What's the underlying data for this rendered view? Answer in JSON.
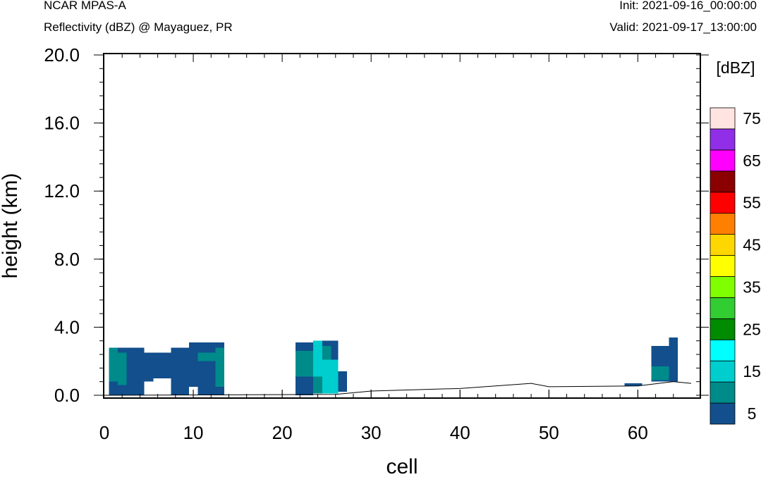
{
  "header": {
    "model": "NCAR MPAS-A",
    "field": "Reflectivity (dBZ) @ Mayaguez, PR",
    "init": "Init: 2021-09-16_00:00:00",
    "valid": "Valid: 2021-09-17_13:00:00"
  },
  "chart_data": {
    "type": "heatmap",
    "xlabel": "cell",
    "ylabel": "height (km)",
    "xlim": [
      0,
      66
    ],
    "ylim": [
      0,
      20
    ],
    "x_ticks": [
      0,
      10,
      20,
      30,
      40,
      50,
      60
    ],
    "x_tick_labels": [
      "0",
      "10",
      "20",
      "30",
      "40",
      "50",
      "60"
    ],
    "y_ticks": [
      0,
      4,
      8,
      12,
      16,
      20
    ],
    "y_tick_labels": [
      "0.0",
      "4.0",
      "8.0",
      "12.0",
      "16.0",
      "20.0"
    ],
    "colorbar": {
      "title": "[dBZ]",
      "levels": [
        5,
        10,
        15,
        20,
        25,
        30,
        35,
        40,
        45,
        50,
        55,
        60,
        65,
        70,
        75
      ],
      "labels": [
        "5",
        "15",
        "25",
        "35",
        "45",
        "55",
        "65",
        "75"
      ],
      "colors": [
        "#124f8c",
        "#008b8b",
        "#00cdcd",
        "#00ffff",
        "#008b00",
        "#32cd32",
        "#7fff00",
        "#ffff00",
        "#ffd700",
        "#ff7f00",
        "#ff0000",
        "#8b0000",
        "#ff00ff",
        "#912ee8",
        "#ffe4e1"
      ]
    },
    "terrain_km": [
      [
        0,
        0
      ],
      [
        26,
        0.05
      ],
      [
        30,
        0.25
      ],
      [
        40,
        0.4
      ],
      [
        48,
        0.7
      ],
      [
        50,
        0.5
      ],
      [
        60,
        0.55
      ],
      [
        64,
        0.8
      ],
      [
        66,
        0.7
      ]
    ],
    "cells": [
      {
        "x0": 0.5,
        "x1": 1.5,
        "y0": 0,
        "y1": 0.8,
        "dbz": 5
      },
      {
        "x0": 0.5,
        "x1": 1.5,
        "y0": 0.8,
        "y1": 2.8,
        "dbz": 10
      },
      {
        "x0": 1.5,
        "x1": 2.5,
        "y0": 0.6,
        "y1": 2.5,
        "dbz": 10
      },
      {
        "x0": 1.5,
        "x1": 2.5,
        "y0": 0,
        "y1": 0.6,
        "dbz": 5
      },
      {
        "x0": 1.5,
        "x1": 2.5,
        "y0": 2.5,
        "y1": 2.8,
        "dbz": 5
      },
      {
        "x0": 2.5,
        "x1": 3.5,
        "y0": 0,
        "y1": 2.8,
        "dbz": 5
      },
      {
        "x0": 3.5,
        "x1": 4.5,
        "y0": 0,
        "y1": 2.8,
        "dbz": 5
      },
      {
        "x0": 4.5,
        "x1": 5.5,
        "y0": 0.8,
        "y1": 2.5,
        "dbz": 5
      },
      {
        "x0": 5.5,
        "x1": 6.5,
        "y0": 1.0,
        "y1": 2.5,
        "dbz": 5
      },
      {
        "x0": 6.5,
        "x1": 7.5,
        "y0": 1.0,
        "y1": 2.5,
        "dbz": 5
      },
      {
        "x0": 7.5,
        "x1": 8.5,
        "y0": 0,
        "y1": 2.8,
        "dbz": 5
      },
      {
        "x0": 8.5,
        "x1": 9.5,
        "y0": 0,
        "y1": 2.8,
        "dbz": 5
      },
      {
        "x0": 9.5,
        "x1": 10.5,
        "y0": 0.5,
        "y1": 3.1,
        "dbz": 5
      },
      {
        "x0": 10.5,
        "x1": 11.5,
        "y0": 0,
        "y1": 3.1,
        "dbz": 5
      },
      {
        "x0": 11.5,
        "x1": 12.5,
        "y0": 0,
        "y1": 3.1,
        "dbz": 5
      },
      {
        "x0": 12.5,
        "x1": 13.5,
        "y0": 0,
        "y1": 3.1,
        "dbz": 5
      },
      {
        "x0": 10.5,
        "x1": 12.5,
        "y0": 2.0,
        "y1": 2.5,
        "dbz": 10
      },
      {
        "x0": 12.5,
        "x1": 13.5,
        "y0": 0.5,
        "y1": 2.8,
        "dbz": 10
      },
      {
        "x0": 21.5,
        "x1": 23.5,
        "y0": 0,
        "y1": 1.1,
        "dbz": 5
      },
      {
        "x0": 21.5,
        "x1": 23.5,
        "y0": 1.1,
        "y1": 2.6,
        "dbz": 10
      },
      {
        "x0": 21.5,
        "x1": 23.5,
        "y0": 2.6,
        "y1": 3.1,
        "dbz": 5
      },
      {
        "x0": 23.5,
        "x1": 24.5,
        "y0": 0.1,
        "y1": 1.1,
        "dbz": 10
      },
      {
        "x0": 23.5,
        "x1": 24.5,
        "y0": 1.1,
        "y1": 3.2,
        "dbz": 15
      },
      {
        "x0": 24.5,
        "x1": 25.5,
        "y0": 0.1,
        "y1": 3.2,
        "dbz": 10
      },
      {
        "x0": 24.5,
        "x1": 25.5,
        "y0": 2.9,
        "y1": 3.2,
        "dbz": 5
      },
      {
        "x0": 24.5,
        "x1": 26.3,
        "y0": 0.1,
        "y1": 2.1,
        "dbz": 15
      },
      {
        "x0": 25.5,
        "x1": 26.3,
        "y0": 2.1,
        "y1": 3.2,
        "dbz": 5
      },
      {
        "x0": 26.3,
        "x1": 27.3,
        "y0": 0.2,
        "y1": 1.4,
        "dbz": 5
      },
      {
        "x0": 58.5,
        "x1": 60.5,
        "y0": 0.55,
        "y1": 0.7,
        "dbz": 5
      },
      {
        "x0": 61.5,
        "x1": 63.5,
        "y0": 0.8,
        "y1": 2.9,
        "dbz": 5
      },
      {
        "x0": 61.5,
        "x1": 63.5,
        "y0": 0.9,
        "y1": 1.7,
        "dbz": 10
      },
      {
        "x0": 63.5,
        "x1": 64.5,
        "y0": 0.8,
        "y1": 3.4,
        "dbz": 5
      }
    ]
  }
}
